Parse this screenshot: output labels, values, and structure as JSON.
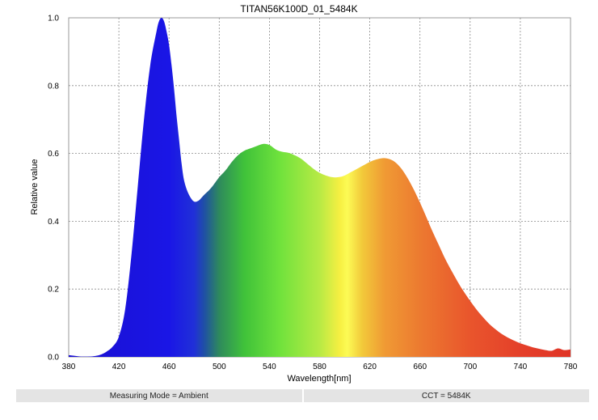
{
  "chart_data": {
    "type": "area",
    "title": "TITAN56K100D_01_5484K",
    "xlabel": "Wavelength[nm]",
    "ylabel": "Relative value",
    "xlim": [
      380,
      780
    ],
    "ylim": [
      0,
      1.0
    ],
    "x_ticks": [
      "380",
      "420",
      "460",
      "500",
      "540",
      "580",
      "620",
      "660",
      "700",
      "740",
      "780"
    ],
    "y_ticks": [
      "0.0",
      "0.2",
      "0.4",
      "0.6",
      "0.8",
      "1.0"
    ],
    "grid": true,
    "fill": "visible-spectrum color gradient",
    "x": [
      380,
      385,
      390,
      395,
      400,
      405,
      410,
      415,
      420,
      425,
      430,
      435,
      440,
      445,
      450,
      452,
      454,
      456,
      458,
      460,
      462,
      464,
      466,
      468,
      470,
      472,
      475,
      478,
      480,
      482,
      484,
      486,
      488,
      490,
      492,
      495,
      500,
      505,
      510,
      515,
      520,
      525,
      530,
      535,
      540,
      545,
      550,
      555,
      560,
      565,
      570,
      575,
      580,
      585,
      590,
      595,
      600,
      605,
      610,
      615,
      620,
      625,
      630,
      635,
      640,
      645,
      650,
      655,
      660,
      665,
      670,
      675,
      680,
      685,
      690,
      695,
      700,
      705,
      710,
      715,
      720,
      725,
      730,
      735,
      740,
      745,
      750,
      755,
      760,
      765,
      770,
      775,
      780
    ],
    "y": [
      0.005,
      0.003,
      0.001,
      0.001,
      0.002,
      0.006,
      0.015,
      0.03,
      0.06,
      0.14,
      0.3,
      0.5,
      0.7,
      0.86,
      0.96,
      0.99,
      1.0,
      0.99,
      0.96,
      0.92,
      0.86,
      0.79,
      0.71,
      0.64,
      0.57,
      0.52,
      0.485,
      0.465,
      0.458,
      0.458,
      0.462,
      0.47,
      0.478,
      0.485,
      0.492,
      0.505,
      0.53,
      0.55,
      0.575,
      0.595,
      0.608,
      0.615,
      0.622,
      0.628,
      0.625,
      0.612,
      0.605,
      0.602,
      0.595,
      0.585,
      0.57,
      0.555,
      0.543,
      0.535,
      0.53,
      0.53,
      0.535,
      0.545,
      0.555,
      0.565,
      0.575,
      0.582,
      0.586,
      0.584,
      0.575,
      0.556,
      0.528,
      0.494,
      0.455,
      0.413,
      0.37,
      0.33,
      0.29,
      0.255,
      0.222,
      0.192,
      0.165,
      0.14,
      0.118,
      0.098,
      0.082,
      0.068,
      0.057,
      0.048,
      0.04,
      0.034,
      0.028,
      0.024,
      0.02,
      0.018,
      0.025,
      0.02,
      0.022
    ]
  },
  "footer": {
    "measuring_mode": "Measuring Mode = Ambient",
    "cct": "CCT = 5484K"
  }
}
